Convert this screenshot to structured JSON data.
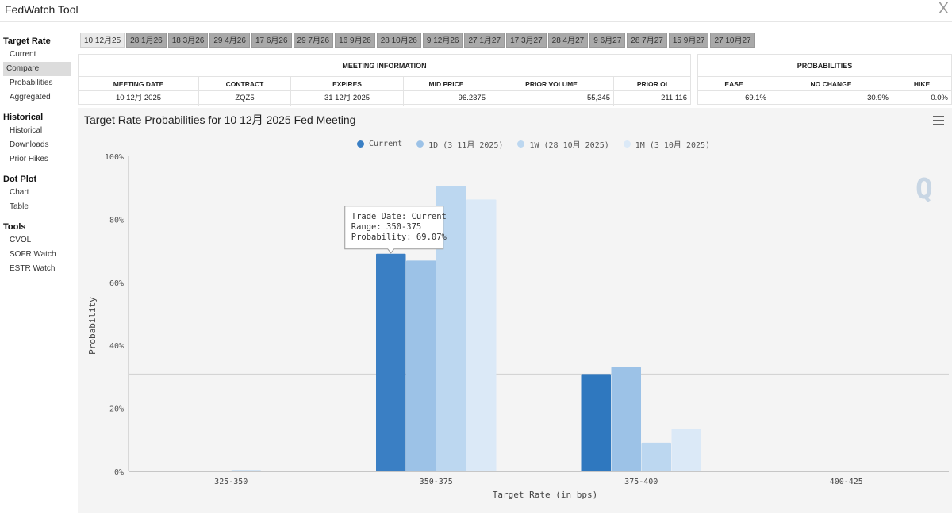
{
  "app": {
    "title": "FedWatch Tool",
    "close_label": "X"
  },
  "sidebar": {
    "sections": [
      {
        "heading": "Target Rate",
        "items": [
          "Current",
          "Compare",
          "Probabilities",
          "Aggregated"
        ]
      },
      {
        "heading": "Historical",
        "items": [
          "Historical",
          "Downloads",
          "Prior Hikes"
        ]
      },
      {
        "heading": "Dot Plot",
        "items": [
          "Chart",
          "Table"
        ]
      },
      {
        "heading": "Tools",
        "items": [
          "CVOL",
          "SOFR Watch",
          "ESTR Watch"
        ]
      }
    ],
    "active_item": "Compare"
  },
  "tabs": [
    "10 12月25",
    "28 1月26",
    "18 3月26",
    "29 4月26",
    "17 6月26",
    "29 7月26",
    "16 9月26",
    "28 10月26",
    "9 12月26",
    "27 1月27",
    "17 3月27",
    "28 4月27",
    "9 6月27",
    "28 7月27",
    "15 9月27",
    "27 10月27"
  ],
  "active_tab": "10 12月25",
  "meeting_info": {
    "heading": "MEETING INFORMATION",
    "headers": [
      "MEETING DATE",
      "CONTRACT",
      "EXPIRES",
      "MID PRICE",
      "PRIOR VOLUME",
      "PRIOR OI"
    ],
    "values": [
      "10 12月 2025",
      "ZQZ5",
      "31 12月 2025",
      "96.2375",
      "55,345",
      "211,116"
    ]
  },
  "probabilities": {
    "heading": "PROBABILITIES",
    "headers": [
      "EASE",
      "NO CHANGE",
      "HIKE"
    ],
    "values": [
      "69.1%",
      "30.9%",
      "0.0%"
    ]
  },
  "colors": {
    "current": "#3a7fc4",
    "d1": "#9cc2e7",
    "w1": "#bcd7f0",
    "m1": "#dbe9f7",
    "current_highlight": "#2f78bf"
  },
  "chart_data": {
    "type": "bar",
    "title": "Target Rate Probabilities for 10 12月 2025 Fed Meeting",
    "xlabel": "Target Rate (in bps)",
    "ylabel": "Probability",
    "ylim": [
      0,
      100
    ],
    "yticks": [
      "0%",
      "20%",
      "40%",
      "60%",
      "80%",
      "100%"
    ],
    "categories": [
      "325-350",
      "350-375",
      "375-400",
      "400-425"
    ],
    "series": [
      {
        "name": "Current",
        "values": [
          0,
          69.07,
          30.9,
          0
        ]
      },
      {
        "name": "1D (3 11月 2025)",
        "values": [
          0,
          66.9,
          33.1,
          0
        ]
      },
      {
        "name": "1W (28 10月 2025)",
        "values": [
          0.4,
          90.6,
          9.1,
          0
        ]
      },
      {
        "name": "1M (3 10月 2025)",
        "values": [
          0,
          86.3,
          13.5,
          0.2
        ]
      }
    ],
    "reference_line": 30.9,
    "tooltip": {
      "lines": [
        "Trade Date: Current",
        "Range: 350-375",
        "Probability: 69.07%"
      ]
    }
  }
}
